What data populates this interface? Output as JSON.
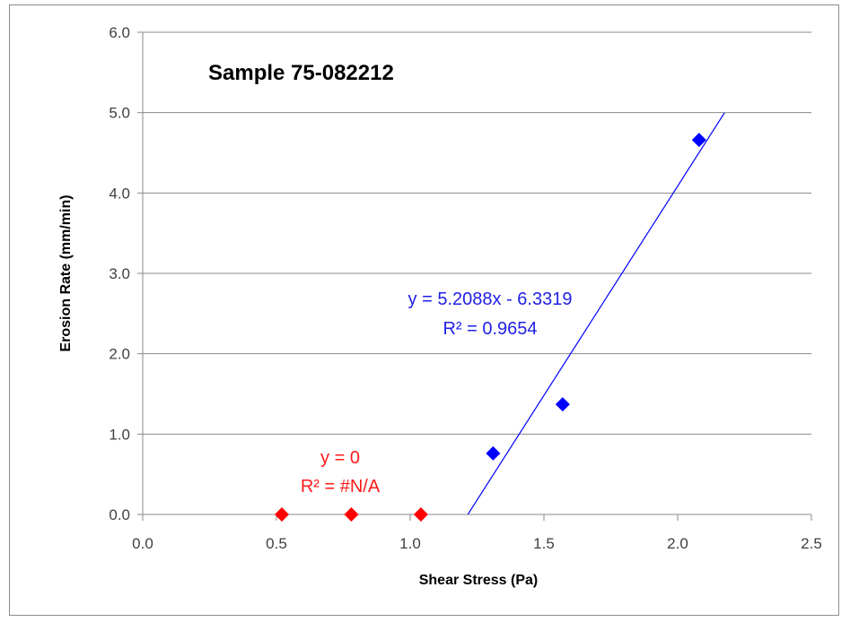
{
  "chart_data": {
    "type": "scatter",
    "title": "Sample 75-082212",
    "xlabel": "Shear Stress (Pa)",
    "ylabel": "Erosion Rate (mm/min)",
    "xlim": [
      0.0,
      2.5
    ],
    "ylim": [
      0.0,
      6.0
    ],
    "x_ticks": [
      "0.0",
      "0.5",
      "1.0",
      "1.5",
      "2.0",
      "2.5"
    ],
    "y_ticks": [
      "0.0",
      "1.0",
      "2.0",
      "3.0",
      "4.0",
      "5.0",
      "6.0"
    ],
    "grid": "horizontal",
    "series": [
      {
        "color": "#ff0000",
        "marker": "diamond",
        "points": [
          [
            0.52,
            0.0
          ],
          [
            0.78,
            0.0
          ],
          [
            1.04,
            0.0
          ]
        ],
        "trendline": {
          "equation": "y = 0",
          "r2": "R² = #N/A"
        }
      },
      {
        "color": "#0000ff",
        "marker": "diamond",
        "points": [
          [
            1.31,
            0.76
          ],
          [
            1.57,
            1.37
          ],
          [
            2.08,
            4.66
          ]
        ],
        "trendline": {
          "slope": 5.2088,
          "intercept": -6.3319,
          "x_range": [
            1.216,
            2.175
          ],
          "equation": "y = 5.2088x - 6.3319",
          "r2": "R² = 0.9654"
        }
      }
    ]
  }
}
